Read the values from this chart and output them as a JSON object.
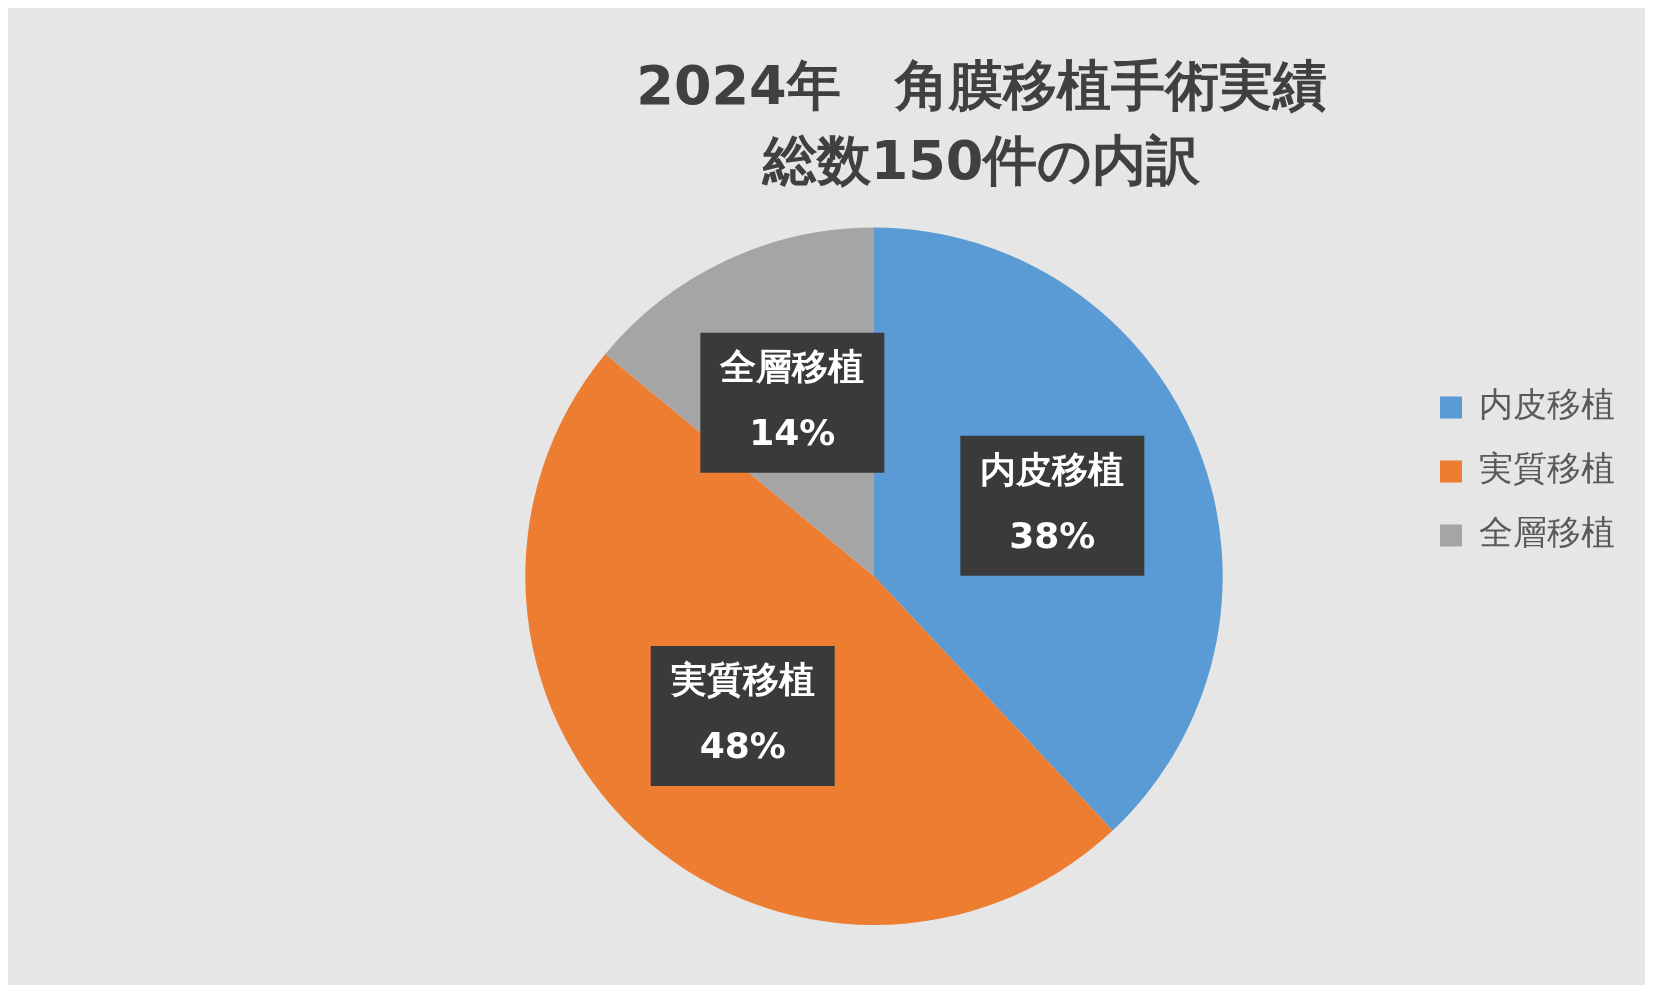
{
  "chart_data": {
    "type": "pie",
    "title": "2024年　角膜移植手術実績",
    "subtitle": "総数150件の内訳",
    "categories": [
      "内皮移植",
      "実質移植",
      "全層移植"
    ],
    "values": [
      38,
      48,
      14
    ],
    "colors": [
      "#5b9bd5",
      "#ed7d31",
      "#a5a5a5"
    ],
    "value_labels": [
      "38%",
      "48%",
      "14%"
    ],
    "legend": "right"
  }
}
